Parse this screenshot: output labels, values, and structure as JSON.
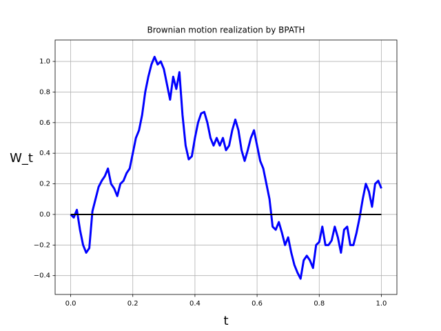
{
  "chart_data": {
    "type": "line",
    "title": "Brownian motion realization by BPATH",
    "xlabel": "t",
    "ylabel": "W_t",
    "series": [
      {
        "color": "#0000ff",
        "x": [
          0,
          0.01,
          0.02,
          0.03,
          0.04,
          0.05,
          0.06,
          0.07,
          0.08,
          0.09,
          0.1,
          0.11,
          0.12,
          0.13,
          0.14,
          0.15,
          0.16,
          0.17,
          0.18,
          0.19,
          0.2,
          0.21,
          0.22,
          0.23,
          0.24,
          0.25,
          0.26,
          0.27,
          0.28,
          0.29,
          0.3,
          0.31,
          0.32,
          0.33,
          0.34,
          0.35,
          0.36,
          0.37,
          0.38,
          0.39,
          0.4,
          0.41,
          0.42,
          0.43,
          0.44,
          0.45,
          0.46,
          0.47,
          0.48,
          0.49,
          0.5,
          0.51,
          0.52,
          0.53,
          0.54,
          0.55,
          0.56,
          0.57,
          0.58,
          0.59,
          0.6,
          0.61,
          0.62,
          0.63,
          0.64,
          0.65,
          0.66,
          0.67,
          0.68,
          0.69,
          0.7,
          0.71,
          0.72,
          0.73,
          0.74,
          0.75,
          0.76,
          0.77,
          0.78,
          0.79,
          0.8,
          0.81,
          0.82,
          0.83,
          0.84,
          0.85,
          0.86,
          0.87,
          0.88,
          0.89,
          0.9,
          0.91,
          0.92,
          0.93,
          0.94,
          0.95,
          0.96,
          0.97,
          0.98,
          0.99,
          1
        ],
        "values": [
          0,
          -0.02,
          0.03,
          -0.1,
          -0.2,
          -0.25,
          -0.22,
          0.02,
          0.1,
          0.18,
          0.22,
          0.25,
          0.3,
          0.2,
          0.17,
          0.12,
          0.2,
          0.22,
          0.27,
          0.3,
          0.4,
          0.5,
          0.55,
          0.65,
          0.8,
          0.9,
          0.98,
          1.03,
          0.98,
          1.0,
          0.95,
          0.85,
          0.75,
          0.9,
          0.82,
          0.93,
          0.65,
          0.45,
          0.36,
          0.38,
          0.5,
          0.6,
          0.66,
          0.67,
          0.6,
          0.5,
          0.45,
          0.5,
          0.45,
          0.5,
          0.42,
          0.45,
          0.55,
          0.62,
          0.55,
          0.42,
          0.35,
          0.42,
          0.5,
          0.55,
          0.45,
          0.35,
          0.3,
          0.2,
          0.1,
          -0.08,
          -0.1,
          -0.05,
          -0.12,
          -0.2,
          -0.15,
          -0.25,
          -0.33,
          -0.38,
          -0.42,
          -0.3,
          -0.27,
          -0.3,
          -0.35,
          -0.2,
          -0.18,
          -0.08,
          -0.2,
          -0.2,
          -0.17,
          -0.08,
          -0.15,
          -0.25,
          -0.1,
          -0.08,
          -0.2,
          -0.2,
          -0.12,
          -0.02,
          0.1,
          0.2,
          0.15,
          0.05,
          0.2,
          0.22,
          0.17
        ]
      },
      {
        "color": "#000000",
        "x": [
          0,
          1
        ],
        "values": [
          0,
          0
        ]
      }
    ],
    "xlim": [
      -0.05,
      1.05
    ],
    "ylim": [
      -0.523,
      1.14
    ],
    "xticks": [
      {
        "value": 0,
        "label": "0.0"
      },
      {
        "value": 0.2,
        "label": "0.2"
      },
      {
        "value": 0.4,
        "label": "0.4"
      },
      {
        "value": 0.6,
        "label": "0.6"
      },
      {
        "value": 0.8,
        "label": "0.8"
      },
      {
        "value": 1,
        "label": "1.0"
      }
    ],
    "yticks": [
      {
        "value": -0.4,
        "label": "−0.4"
      },
      {
        "value": -0.2,
        "label": "−0.2"
      },
      {
        "value": 0,
        "label": "0.0"
      },
      {
        "value": 0.2,
        "label": "0.2"
      },
      {
        "value": 0.4,
        "label": "0.4"
      },
      {
        "value": 0.6,
        "label": "0.6"
      },
      {
        "value": 0.8,
        "label": "0.8"
      },
      {
        "value": 1,
        "label": "1.0"
      }
    ],
    "grid": true
  }
}
